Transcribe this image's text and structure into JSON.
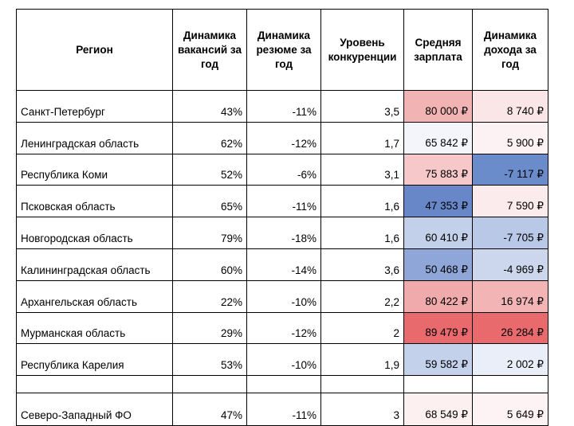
{
  "headers": {
    "region": "Регион",
    "vacancies": "Динамика вакансий за год",
    "resumes": "Динамика резюме за год",
    "competition": "Уровень конкуренции",
    "salary": "Средняя зарплата",
    "income": "Динамика дохода за год"
  },
  "rows": [
    {
      "region": "Санкт-Петербург",
      "vacancies": "43%",
      "resumes": "-11%",
      "competition": "3,5",
      "salary": "80 000 ₽",
      "salary_color": "#f2b3b4",
      "income": "8 740 ₽",
      "income_color": "#fbe6e7"
    },
    {
      "region": "Ленинградская область",
      "vacancies": "62%",
      "resumes": "-12%",
      "competition": "1,7",
      "salary": "65 842 ₽",
      "salary_color": "#f4f5fb",
      "income": "5 900 ₽",
      "income_color": "#fdf2f3"
    },
    {
      "region": "Республика Коми",
      "vacancies": "52%",
      "resumes": "-6%",
      "competition": "3,1",
      "salary": "75 883 ₽",
      "salary_color": "#f6c8c9",
      "income": "-7 117 ₽",
      "income_color": "#6b8ccb"
    },
    {
      "region": "Псковская область",
      "vacancies": "65%",
      "resumes": "-11%",
      "competition": "1,6",
      "salary": "47 353 ₽",
      "salary_color": "#6787c9",
      "income": "7 590 ₽",
      "income_color": "#fbebec"
    },
    {
      "region": "Новгородская область",
      "vacancies": "79%",
      "resumes": "-18%",
      "competition": "1,6",
      "salary": "60 410 ₽",
      "salary_color": "#c2d0ea",
      "income": "-7 705 ₽",
      "income_color": "#b8c8e6"
    },
    {
      "region": "Калининградская область",
      "vacancies": "60%",
      "resumes": "-14%",
      "competition": "3,6",
      "salary": "50 468 ₽",
      "salary_color": "#8fa7d8",
      "income": "-4 969 ₽",
      "income_color": "#ccd7ee"
    },
    {
      "region": "Архангельская область",
      "vacancies": "22%",
      "resumes": "-10%",
      "competition": "2,2",
      "salary": "80 422 ₽",
      "salary_color": "#f0aaab",
      "income": "16 974 ₽",
      "income_color": "#f3b4b5"
    },
    {
      "region": "Мурманская область",
      "vacancies": "29%",
      "resumes": "-12%",
      "competition": "2",
      "salary": "89 479 ₽",
      "salary_color": "#e86a6c",
      "income": "26 284 ₽",
      "income_color": "#e86a6c"
    },
    {
      "region": "Республика Карелия",
      "vacancies": "53%",
      "resumes": "-10%",
      "competition": "1,9",
      "salary": "59 582 ₽",
      "salary_color": "#c3d1eb",
      "income": "2 002 ₽",
      "income_color": "#e9eef8"
    }
  ],
  "total": {
    "region": "Северо-Западный ФО",
    "vacancies": "47%",
    "resumes": "-11%",
    "competition": "3",
    "salary": "68 549 ₽",
    "salary_color": "#fcf0f1",
    "income": "5 649 ₽",
    "income_color": "#fdf3f4"
  }
}
